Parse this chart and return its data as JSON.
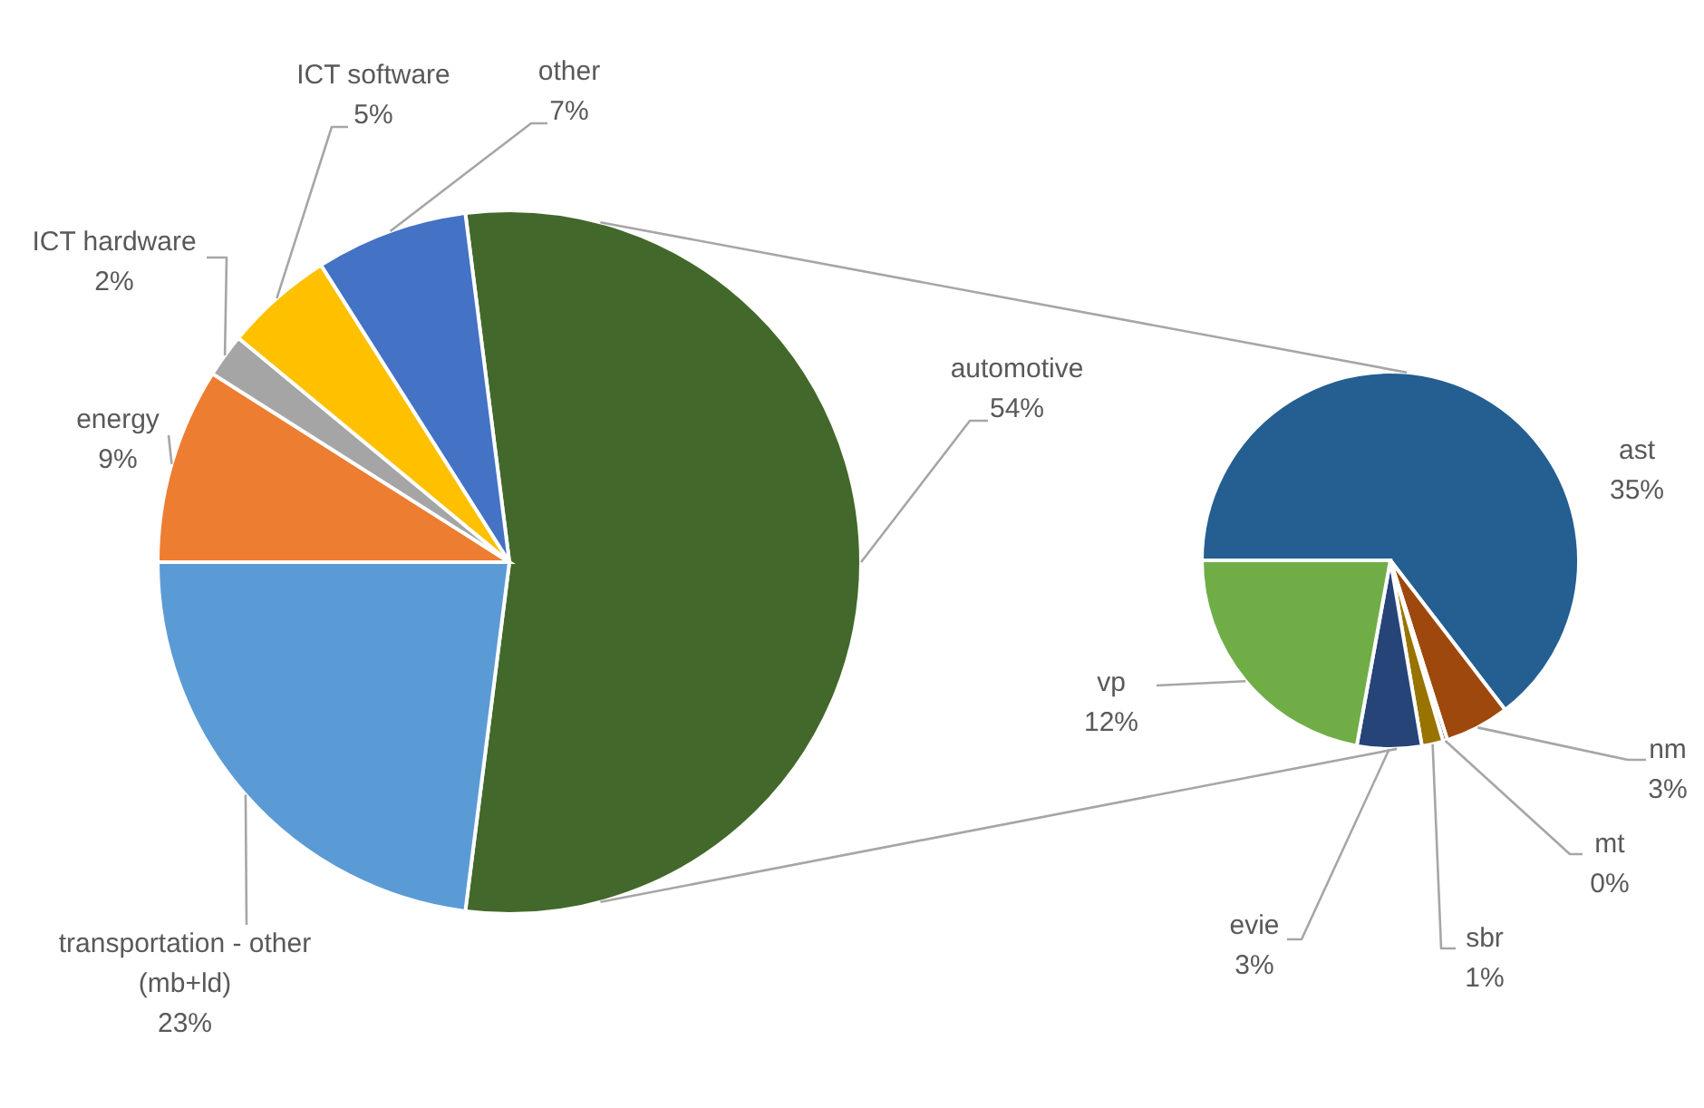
{
  "chart_data": [
    {
      "type": "pie",
      "categories": [
        "automotive",
        "transportation - other (mb+ld)",
        "energy",
        "ICT hardware",
        "ICT software",
        "other"
      ],
      "values": [
        54,
        23,
        9,
        2,
        5,
        7
      ],
      "colors": [
        "#43682b",
        "#5b9bd5",
        "#ed7d31",
        "#a5a5a5",
        "#ffc000",
        "#4472c4"
      ],
      "value_labels": [
        "54%",
        "23%",
        "9%",
        "2%",
        "5%",
        "7%"
      ]
    },
    {
      "type": "pie",
      "categories": [
        "ast",
        "nm",
        "mt",
        "sbr",
        "evie",
        "vp"
      ],
      "values": [
        35,
        3,
        0.2,
        1,
        3,
        12
      ],
      "colors": [
        "#255e91",
        "#9e480e",
        "#636363",
        "#997300",
        "#264478",
        "#70ad47"
      ],
      "value_labels": [
        "35%",
        "3%",
        "0%",
        "1%",
        "3%",
        "12%"
      ]
    }
  ]
}
